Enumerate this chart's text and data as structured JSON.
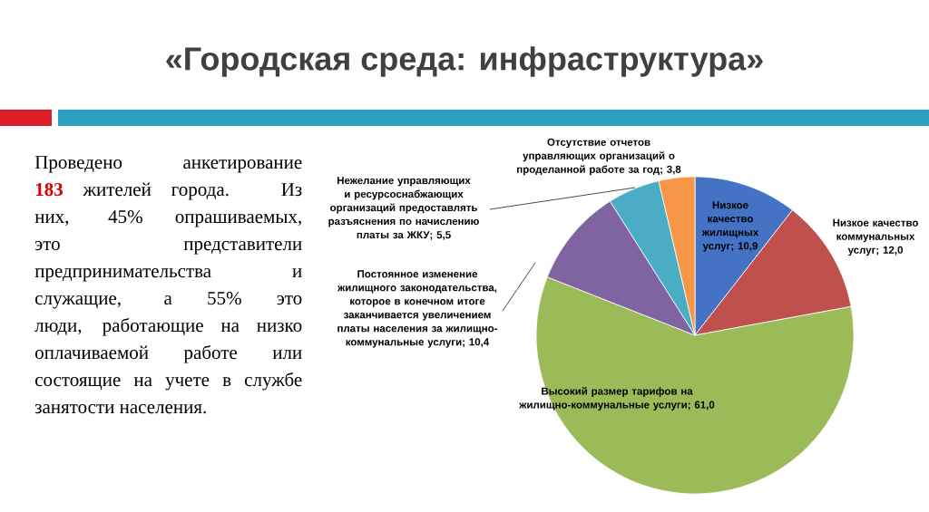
{
  "chart_data": {
    "type": "pie",
    "title": "«Городская среда: инфраструктура»",
    "categories": [
      "Низкое качество жилищных услуг",
      "Низкое качество коммунальных услуг",
      "Высокий размер тарифов на жилищно-коммунальные услуги",
      "Постоянное изменение жилищного законодательства, которое в конечном итоге заканчивается увеличением платы населения за жилищно-коммунальные услуги",
      "Нежелание управляющих и ресурсоснабжающих организаций предоставлять разъяснения по начислению платы за ЖКУ",
      "Отсутствие отчетов управляющих организаций о проделанной работе за год"
    ],
    "values": [
      10.9,
      12.0,
      61.0,
      10.4,
      5.5,
      3.8
    ],
    "value_labels": [
      "; 10,9",
      "; 12,0",
      "; 61,0",
      "; 10,4",
      "; 5,5",
      "; 3,8"
    ],
    "colors": [
      "#4472c4",
      "#c0504d",
      "#9bbb59",
      "#8064a2",
      "#4bacc6",
      "#f79646"
    ],
    "annotations": [
      "Проведено анкетирование **183** жителей города. Из них, 45% опрашиваемых, это представители предпринимательства и служащие, а 55% это люди, работающие на низко оплачиваемой работе или состоящие на учете в службе занятости населения."
    ]
  }
}
